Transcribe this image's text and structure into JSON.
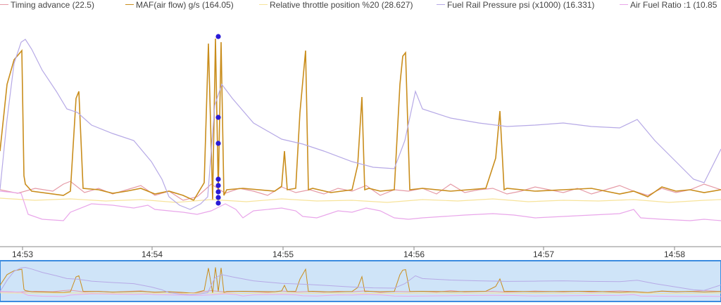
{
  "legend": [
    {
      "label": "Timing advance (22.5)",
      "color": "#e59aa6"
    },
    {
      "label": "MAF(air flow) g/s (164.05)",
      "color": "#c98d1c"
    },
    {
      "label": "Relative throttle position %20 (28.627)",
      "color": "#f7e39a"
    },
    {
      "label": "Fuel Rail Pressure psi (x1000) (16.331)",
      "color": "#b6a9e6"
    },
    {
      "label": "Air Fuel Ratio :1 (10.85",
      "color": "#e9a6ea"
    }
  ],
  "chart_data": {
    "type": "line",
    "x_ticks": [
      "14:53",
      "14:54",
      "14:55",
      "14:56",
      "14:57",
      "14:58"
    ],
    "series": [
      {
        "name": "Timing advance (22.5)",
        "color": "#e59aa6",
        "x": [
          0,
          25,
          50,
          75,
          90,
          100,
          120,
          140,
          160,
          180,
          200,
          220,
          240,
          260,
          280,
          300,
          320,
          340,
          360,
          380,
          400,
          420,
          440,
          460,
          480,
          500,
          520,
          540,
          560,
          580,
          600,
          620,
          640,
          660,
          680,
          700,
          720,
          740,
          760,
          780,
          800,
          820,
          840,
          860,
          880,
          900,
          920,
          940,
          960,
          980,
          1000,
          1024
        ],
        "y": [
          270,
          275,
          268,
          272,
          262,
          258,
          274,
          268,
          276,
          270,
          264,
          278,
          272,
          285,
          280,
          262,
          275,
          268,
          272,
          278,
          266,
          274,
          270,
          276,
          268,
          272,
          264,
          278,
          270,
          272,
          268,
          276,
          262,
          274,
          270,
          268,
          276,
          272,
          266,
          270,
          274,
          268,
          276,
          270,
          264,
          272,
          278,
          268,
          274,
          270,
          262,
          270
        ]
      },
      {
        "name": "MAF(air flow) g/s (164.05)",
        "color": "#c98d1c",
        "x": [
          0,
          10,
          20,
          31,
          34,
          36,
          45,
          90,
          100,
          108,
          112,
          118,
          140,
          160,
          180,
          200,
          220,
          240,
          260,
          275,
          290,
          296,
          302,
          306,
          310,
          314,
          318,
          322,
          345,
          390,
          400,
          404,
          408,
          420,
          426,
          434,
          438,
          444,
          470,
          500,
          508,
          514,
          518,
          524,
          540,
          560,
          568,
          572,
          576,
          582,
          600,
          640,
          690,
          704,
          710,
          716,
          720,
          760,
          800,
          840,
          880,
          900,
          920,
          940,
          960,
          980,
          1000,
          1024
        ],
        "y": [
          215,
          120,
          85,
          72,
          250,
          262,
          272,
          278,
          272,
          140,
          130,
          268,
          270,
          275,
          272,
          268,
          276,
          272,
          278,
          285,
          260,
          62,
          285,
          55,
          270,
          60,
          278,
          270,
          268,
          272,
          265,
          215,
          270,
          268,
          160,
          72,
          270,
          268,
          274,
          270,
          235,
          138,
          270,
          268,
          272,
          270,
          120,
          80,
          75,
          270,
          268,
          272,
          268,
          225,
          158,
          270,
          268,
          272,
          270,
          268,
          276,
          272,
          280,
          266,
          272,
          270,
          274,
          270
        ]
      },
      {
        "name": "Relative throttle position %20 (28.627)",
        "color": "#f7e39a",
        "x": [
          0,
          50,
          100,
          150,
          200,
          250,
          300,
          350,
          400,
          450,
          500,
          550,
          600,
          650,
          700,
          750,
          800,
          850,
          900,
          950,
          1000,
          1024
        ],
        "y": [
          282,
          285,
          283,
          286,
          284,
          288,
          284,
          287,
          283,
          286,
          285,
          288,
          284,
          286,
          283,
          287,
          285,
          286,
          284,
          288,
          285,
          284
        ]
      },
      {
        "name": "Fuel Rail Pressure psi (x1000) (16.331)",
        "color": "#b6a9e6",
        "x": [
          0,
          10,
          20,
          30,
          36,
          45,
          60,
          80,
          95,
          110,
          130,
          160,
          190,
          215,
          230,
          240,
          255,
          270,
          285,
          295,
          305,
          315,
          330,
          360,
          400,
          430,
          460,
          500,
          530,
          560,
          575,
          590,
          600,
          640,
          680,
          720,
          760,
          800,
          840,
          880,
          905,
          930,
          960,
          985,
          1000,
          1024
        ],
        "y": [
          270,
          170,
          90,
          60,
          56,
          70,
          100,
          130,
          155,
          160,
          178,
          190,
          200,
          230,
          255,
          280,
          292,
          298,
          290,
          280,
          150,
          120,
          140,
          175,
          198,
          205,
          215,
          230,
          238,
          240,
          200,
          130,
          155,
          168,
          175,
          180,
          178,
          175,
          180,
          182,
          170,
          200,
          230,
          255,
          260,
          212
        ]
      },
      {
        "name": "Air Fuel Ratio :1 (10.85",
        "color": "#e9a6ea",
        "x": [
          0,
          30,
          40,
          60,
          90,
          100,
          130,
          160,
          190,
          210,
          220,
          240,
          260,
          280,
          300,
          320,
          335,
          345,
          360,
          400,
          420,
          430,
          450,
          480,
          500,
          520,
          540,
          560,
          580,
          600,
          630,
          660,
          700,
          730,
          760,
          800,
          840,
          880,
          900,
          910,
          940,
          980,
          1000,
          1024
        ],
        "y": [
          272,
          275,
          305,
          312,
          314,
          302,
          290,
          292,
          296,
          292,
          298,
          300,
          302,
          305,
          300,
          290,
          298,
          310,
          300,
          296,
          300,
          308,
          310,
          300,
          302,
          296,
          300,
          310,
          312,
          310,
          308,
          306,
          304,
          306,
          310,
          308,
          306,
          304,
          298,
          310,
          312,
          314,
          312,
          314
        ]
      }
    ],
    "markers": {
      "color": "#2a1bd6",
      "y": [
        52,
        167,
        204,
        255,
        264,
        273,
        281,
        289
      ]
    }
  },
  "overview": {
    "fill": "#cfe4f8",
    "border": "#3b8be0"
  }
}
